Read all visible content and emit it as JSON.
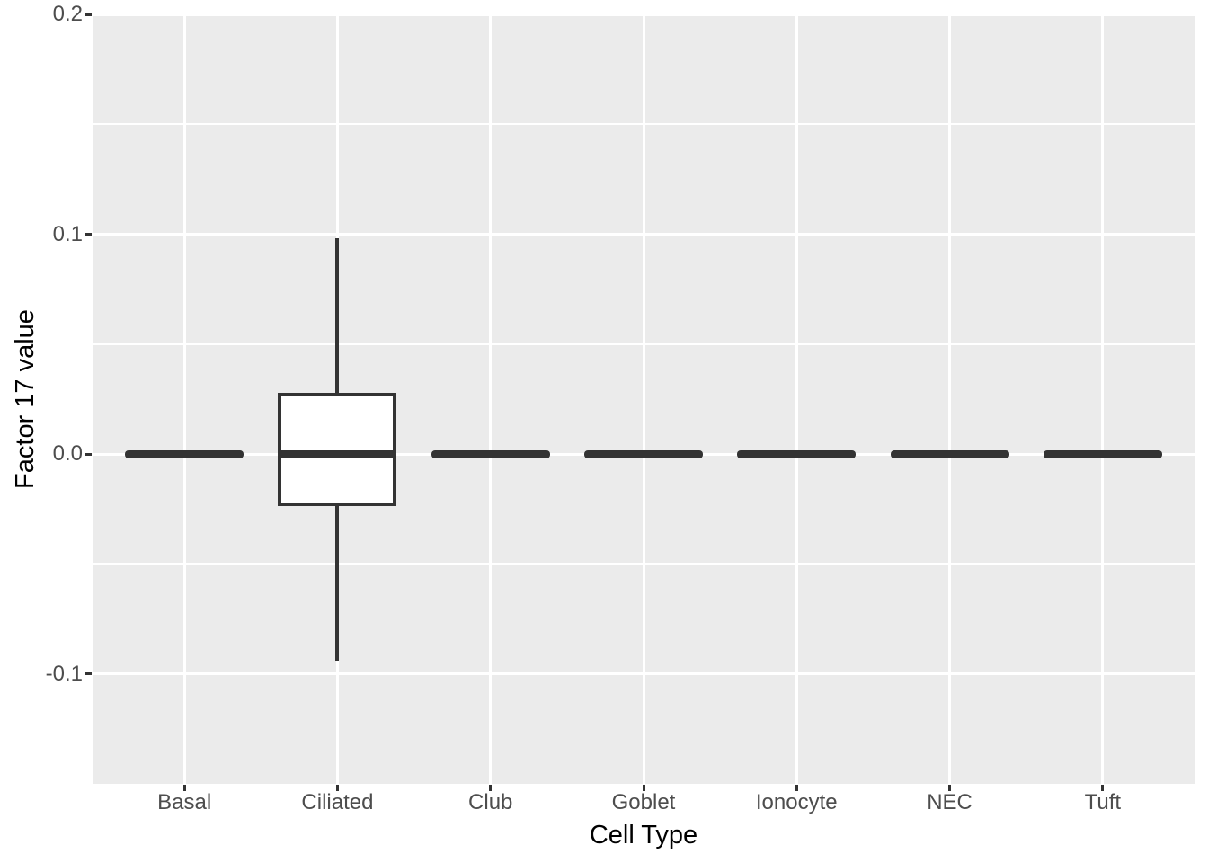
{
  "chart_data": {
    "type": "boxplot",
    "title": "",
    "xlabel": "Cell Type",
    "ylabel": "Factor 17 value",
    "categories": [
      "Basal",
      "Ciliated",
      "Club",
      "Goblet",
      "Ionocyte",
      "NEC",
      "Tuft"
    ],
    "y_axis": {
      "ticks": [
        0.2,
        0.1,
        0.0,
        -0.1
      ],
      "tick_labels": [
        "0.2",
        "0.1",
        "0.0",
        "-0.1"
      ],
      "minor_ticks": [
        0.15,
        0.05,
        -0.05
      ],
      "range": [
        -0.15,
        0.2
      ]
    },
    "boxes": [
      {
        "category": "Basal",
        "whisker_low": 0.0,
        "q1": 0.0,
        "median": 0.0,
        "q3": 0.0,
        "whisker_high": 0.0
      },
      {
        "category": "Ciliated",
        "whisker_low": -0.094,
        "q1": -0.023,
        "median": 0.0,
        "q3": 0.027,
        "whisker_high": 0.098
      },
      {
        "category": "Club",
        "whisker_low": 0.0,
        "q1": 0.0,
        "median": 0.0,
        "q3": 0.0,
        "whisker_high": 0.0
      },
      {
        "category": "Goblet",
        "whisker_low": 0.0,
        "q1": 0.0,
        "median": 0.0,
        "q3": 0.0,
        "whisker_high": 0.0
      },
      {
        "category": "Ionocyte",
        "whisker_low": 0.0,
        "q1": 0.0,
        "median": 0.0,
        "q3": 0.0,
        "whisker_high": 0.0
      },
      {
        "category": "NEC",
        "whisker_low": 0.0,
        "q1": 0.0,
        "median": 0.0,
        "q3": 0.0,
        "whisker_high": 0.0
      },
      {
        "category": "Tuft",
        "whisker_low": 0.0,
        "q1": 0.0,
        "median": 0.0,
        "q3": 0.0,
        "whisker_high": 0.0
      }
    ],
    "legend": null,
    "layout_hints": {
      "grid": "horizontal major+minor, vertical major at category centers",
      "legend_position": "none",
      "box_width_fraction": 0.75
    },
    "colors": {
      "panel_background": "#EBEBEB",
      "gridline": "#FFFFFF",
      "box_stroke": "#333333",
      "box_fill": "#FFFFFF",
      "axis_text": "#4D4D4D",
      "axis_title": "#000000",
      "tick_mark": "#333333",
      "outer_background": "#FFFFFF"
    }
  }
}
